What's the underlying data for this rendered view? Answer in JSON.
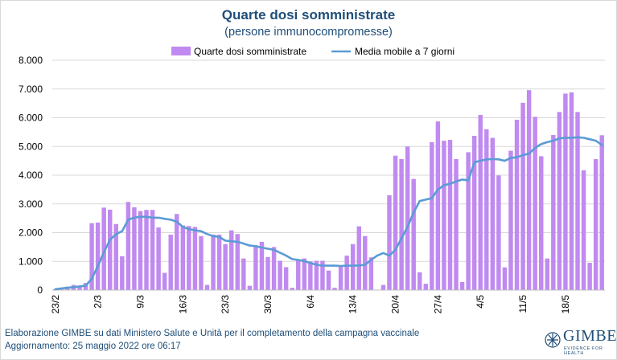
{
  "header": {
    "title": "Quarte dosi somministrate",
    "subtitle": "(persone immunocompromesse)"
  },
  "footer": {
    "line1": "Elaborazione GIMBE su dati Ministero Salute e Unità per il completamento della campagna vaccinale",
    "line2": "Aggiornamento: 25 maggio 2022 ore 06:17"
  },
  "logo": {
    "text": "GIMBE",
    "tagline": "EVIDENCE FOR HEALTH"
  },
  "colors": {
    "bar": "#c08af0",
    "line": "#5b9bd5",
    "grid": "#d9d9d9",
    "text": "#1f4e79",
    "axis_text": "#000000"
  },
  "chart_data": {
    "type": "bar",
    "title": "Quarte dosi somministrate",
    "subtitle": "(persone immunocompromesse)",
    "ylim": [
      0,
      8000
    ],
    "yticks": [
      "0",
      "1.000",
      "2.000",
      "3.000",
      "4.000",
      "5.000",
      "6.000",
      "7.000",
      "8.000"
    ],
    "xtick_labels": [
      {
        "label": "23/2",
        "index": 0
      },
      {
        "label": "2/3",
        "index": 7
      },
      {
        "label": "9/3",
        "index": 14
      },
      {
        "label": "16/3",
        "index": 21
      },
      {
        "label": "23/3",
        "index": 28
      },
      {
        "label": "30/3",
        "index": 35
      },
      {
        "label": "6/4",
        "index": 42
      },
      {
        "label": "13/4",
        "index": 49
      },
      {
        "label": "20/4",
        "index": 56
      },
      {
        "label": "27/4",
        "index": 63
      },
      {
        "label": "4/5",
        "index": 70
      },
      {
        "label": "11/5",
        "index": 77
      },
      {
        "label": "18/5",
        "index": 84
      }
    ],
    "legend": {
      "position": "top"
    },
    "grid": true,
    "series": [
      {
        "name": "Quarte dosi somministrate",
        "type": "bar",
        "values": [
          30,
          80,
          120,
          180,
          150,
          250,
          2330,
          2350,
          2870,
          2800,
          2300,
          1180,
          3070,
          2880,
          2750,
          2790,
          2790,
          2180,
          600,
          1930,
          2650,
          2250,
          2230,
          2200,
          1880,
          180,
          1930,
          1930,
          1600,
          2080,
          1950,
          1100,
          150,
          1500,
          1680,
          1150,
          1500,
          1020,
          800,
          80,
          1050,
          1100,
          1000,
          1020,
          1020,
          680,
          80,
          830,
          1200,
          1600,
          2220,
          1880,
          1140,
          0,
          180,
          3300,
          4680,
          4560,
          5000,
          3870,
          620,
          220,
          5150,
          5870,
          5200,
          5230,
          4560,
          280,
          4800,
          5370,
          6100,
          5600,
          5300,
          3990,
          790,
          4850,
          5930,
          6520,
          6960,
          6030,
          4660,
          1100,
          5400,
          6200,
          6840,
          6880,
          6200,
          4170,
          950,
          4560,
          5390
        ]
      },
      {
        "name": "Media mobile a 7 giorni",
        "type": "line",
        "values": [
          30,
          60,
          80,
          100,
          130,
          150,
          400,
          830,
          1320,
          1750,
          1950,
          2050,
          2450,
          2520,
          2550,
          2550,
          2520,
          2520,
          2480,
          2450,
          2380,
          2200,
          2120,
          2080,
          2050,
          1950,
          1880,
          1850,
          1720,
          1700,
          1680,
          1620,
          1550,
          1530,
          1480,
          1440,
          1400,
          1300,
          1200,
          1080,
          1050,
          1010,
          940,
          880,
          850,
          850,
          850,
          840,
          850,
          850,
          860,
          880,
          1050,
          1200,
          1290,
          1200,
          1400,
          1800,
          2200,
          2700,
          3100,
          3150,
          3200,
          3500,
          3650,
          3700,
          3780,
          3850,
          3820,
          4450,
          4500,
          4550,
          4560,
          4550,
          4500,
          4600,
          4620,
          4700,
          4750,
          4950,
          5080,
          5150,
          5200,
          5280,
          5300,
          5300,
          5320,
          5300,
          5250,
          5200,
          5050
        ]
      }
    ]
  }
}
